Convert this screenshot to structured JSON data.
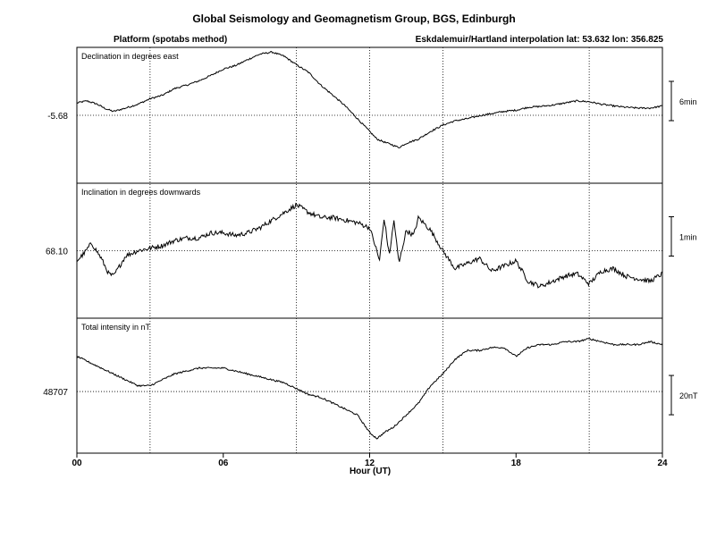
{
  "title": "Global Seismology and Geomagnetism Group, BGS, Edinburgh",
  "subtitle_left": "Platform (spotabs method)",
  "subtitle_right": "Eskdalemuir/Hartland interpolation  lat: 53.632  lon: 356.825",
  "chart_data": {
    "type": "line",
    "xlabel": "Hour (UT)",
    "x_ticks": [
      "00",
      "06",
      "12",
      "18",
      "24"
    ],
    "x_range": [
      0,
      24
    ],
    "vertical_gridlines_hours": [
      3,
      9,
      12,
      15,
      21
    ],
    "panels": [
      {
        "label": "Declination in degrees east",
        "ref_value": "-5.68",
        "scale": "6min",
        "ylim": [
          -5.84,
          -5.52
        ],
        "ref": -5.68,
        "x": [
          0,
          0.4,
          0.8,
          1.2,
          1.5,
          2,
          2.5,
          3,
          3.5,
          4,
          4.5,
          5,
          5.5,
          6,
          6.5,
          7,
          7.5,
          8,
          8.5,
          9,
          9.5,
          10,
          10.5,
          11,
          11.5,
          12,
          12.3,
          12.6,
          12.9,
          13.2,
          13.5,
          14,
          14.5,
          15,
          15.5,
          16,
          16.5,
          17,
          17.5,
          18,
          18.5,
          19,
          19.5,
          20,
          20.5,
          21,
          21.5,
          22,
          22.5,
          23,
          23.5,
          24
        ],
        "y": [
          -5.651,
          -5.646,
          -5.653,
          -5.665,
          -5.671,
          -5.663,
          -5.654,
          -5.641,
          -5.633,
          -5.617,
          -5.609,
          -5.599,
          -5.586,
          -5.571,
          -5.563,
          -5.549,
          -5.536,
          -5.531,
          -5.541,
          -5.561,
          -5.579,
          -5.609,
          -5.633,
          -5.658,
          -5.688,
          -5.718,
          -5.736,
          -5.743,
          -5.749,
          -5.756,
          -5.746,
          -5.736,
          -5.718,
          -5.703,
          -5.693,
          -5.688,
          -5.681,
          -5.676,
          -5.671,
          -5.668,
          -5.661,
          -5.659,
          -5.656,
          -5.651,
          -5.646,
          -5.648,
          -5.654,
          -5.658,
          -5.661,
          -5.663,
          -5.663,
          -5.658
        ]
      },
      {
        "label": "Inclination in degrees downwards",
        "ref_value": "68.10",
        "scale": "1min",
        "ylim": [
          68.0735,
          68.1265
        ],
        "ref": 68.1,
        "x": [
          0,
          0.3,
          0.6,
          1,
          1.3,
          1.5,
          2,
          2.5,
          3,
          3.5,
          4,
          4.5,
          5,
          5.5,
          6,
          6.5,
          7,
          7.5,
          8,
          8.5,
          9,
          9.5,
          10,
          10.5,
          11,
          11.5,
          12,
          12.2,
          12.4,
          12.6,
          12.8,
          13,
          13.2,
          13.5,
          13.8,
          14,
          14.5,
          15,
          15.5,
          16,
          16.5,
          17,
          17.5,
          18,
          18.5,
          19,
          19.5,
          20,
          20.5,
          21,
          21.5,
          22,
          22.5,
          23,
          23.5,
          24
        ],
        "y": [
          68.096,
          68.099,
          68.103,
          68.097,
          68.091,
          68.09,
          68.098,
          68.1,
          68.101,
          68.102,
          68.104,
          68.105,
          68.105,
          68.107,
          68.107,
          68.106,
          68.107,
          68.109,
          68.112,
          68.115,
          68.118,
          68.115,
          68.113,
          68.113,
          68.112,
          68.111,
          68.109,
          68.103,
          68.096,
          68.113,
          68.098,
          68.112,
          68.095,
          68.108,
          68.106,
          68.113,
          68.108,
          68.1,
          68.093,
          68.095,
          68.097,
          68.092,
          68.094,
          68.096,
          68.088,
          68.086,
          68.088,
          68.09,
          68.091,
          68.087,
          68.092,
          68.093,
          68.09,
          68.089,
          68.088,
          68.091
        ]
      },
      {
        "label": "Total intensity in nT",
        "ref_value": "48707",
        "scale": "20nT",
        "ylim": [
          48686,
          48732
        ],
        "ref": 48707,
        "x": [
          0,
          0.5,
          1,
          1.5,
          2,
          2.5,
          3,
          3.5,
          4,
          4.5,
          5,
          5.5,
          6,
          6.5,
          7,
          7.5,
          8,
          8.5,
          9,
          9.5,
          10,
          10.5,
          11,
          11.5,
          12,
          12.3,
          12.6,
          13,
          13.5,
          14,
          14.5,
          15,
          15.5,
          16,
          16.5,
          17,
          17.5,
          18,
          18.5,
          19,
          19.5,
          20,
          20.5,
          21,
          21.5,
          22,
          22.5,
          23,
          23.5,
          24
        ],
        "y": [
          48719,
          48717,
          48715,
          48713,
          48711,
          48709,
          48709,
          48711,
          48713,
          48714,
          48715,
          48715,
          48715,
          48714,
          48713,
          48712,
          48711,
          48710,
          48708,
          48706,
          48705,
          48703,
          48701,
          48699,
          48693,
          48691,
          48693,
          48695,
          48699,
          48703,
          48709,
          48713,
          48718,
          48721,
          48721,
          48722,
          48722,
          48719,
          48722,
          48723,
          48723,
          48724,
          48724,
          48725,
          48724,
          48723,
          48723,
          48723,
          48724,
          48723
        ]
      }
    ]
  }
}
